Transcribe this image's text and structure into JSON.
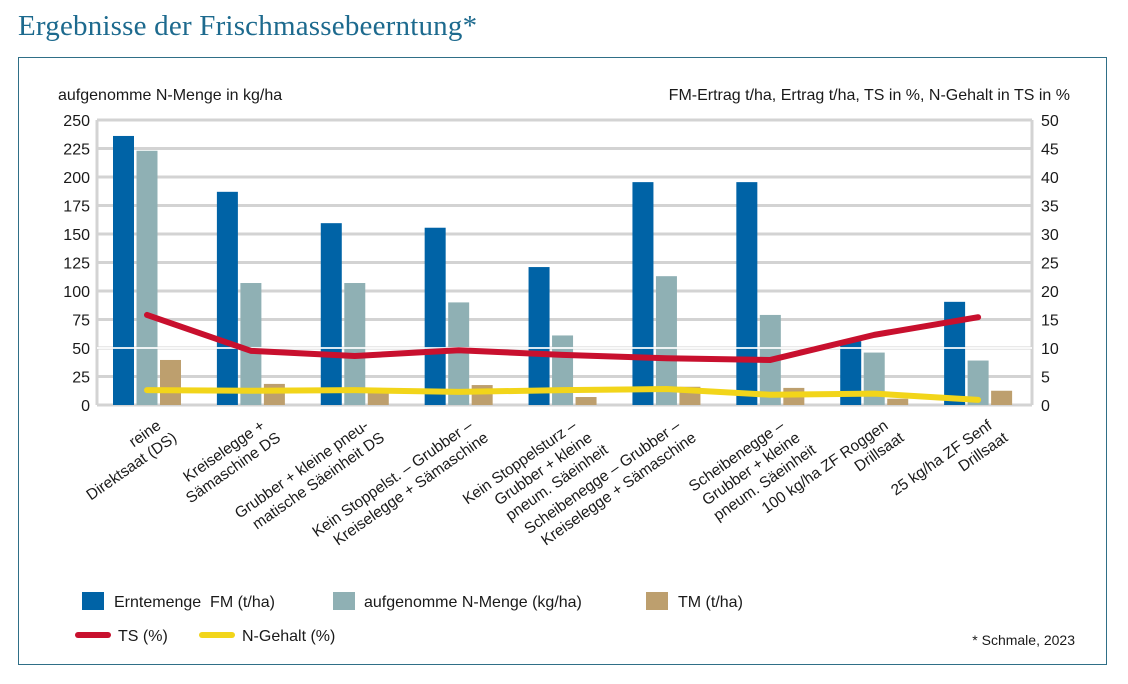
{
  "page": {
    "title": "Ergebnisse der Frischmassebeerntung*",
    "source_note": "* Schmale, 2023"
  },
  "colors": {
    "fm": "#0063a6",
    "n_menge": "#8fb0b4",
    "tm": "#bd9f6e",
    "ts": "#c8102e",
    "n_gehalt": "#f2d51a",
    "grid": "#d3d3d3",
    "frame": "#2f6f87",
    "title": "#1d6a8e"
  },
  "chart_data": {
    "type": "bar",
    "combo": "grouped bars with line overlays (dual y-axis)",
    "title": "Ergebnisse der Frischmassebeerntung*",
    "ylabel_left": "aufgenomme N-Menge in kg/ha",
    "ylabel_right": "FM-Ertrag t/ha, Ertrag t/ha, TS in %, N-Gehalt in TS in %",
    "ylim_left": [
      0,
      250
    ],
    "ylim_right": [
      0,
      50
    ],
    "yticks_left": [
      "0",
      "25",
      "50",
      "75",
      "100",
      "125",
      "150",
      "175",
      "200",
      "225",
      "250"
    ],
    "yticks_right": [
      "0",
      "5",
      "10",
      "15",
      "20",
      "25",
      "30",
      "35",
      "40",
      "45",
      "50"
    ],
    "grid": true,
    "legend_position": "bottom",
    "categories": [
      [
        "reine",
        "Direktsaat (DS)"
      ],
      [
        "Kreiselegge +",
        "Sämaschine DS"
      ],
      [
        "Grubber + kleine pneu-",
        "matische Säeinheit DS"
      ],
      [
        "Kein Stoppelst. – Grubber –",
        "Kreiselegge + Sämaschine"
      ],
      [
        "Kein Stoppelsturz –",
        "Grubber + kleine",
        "pneum. Säeinheit"
      ],
      [
        "Scheibenegge – Grubber –",
        "Kreiselegge + Sämaschine"
      ],
      [
        "Scheibenegge –",
        "Grubber + kleine",
        "pneum. Säeinheit"
      ],
      [
        "100 kg/ha ZF Roggen",
        "Drillsaat"
      ],
      [
        "25 kg/ha ZF Senf",
        "Drillsaat"
      ]
    ],
    "series": [
      {
        "key": "fm",
        "name": "Erntemenge  FM (t/ha)",
        "kind": "bar",
        "axis": "right",
        "values": [
          47.2,
          37.4,
          31.9,
          31.1,
          24.2,
          39.1,
          39.1,
          11.2,
          18.1
        ]
      },
      {
        "key": "n_menge",
        "name": "aufgenomme N-Menge (kg/ha)",
        "kind": "bar",
        "axis": "left",
        "values": [
          223,
          107,
          107,
          90,
          61,
          113,
          79,
          46,
          39
        ]
      },
      {
        "key": "tm",
        "name": "TM (t/ha)",
        "kind": "bar",
        "axis": "right",
        "values": [
          7.9,
          3.7,
          2.3,
          3.5,
          1.4,
          3.2,
          3.0,
          1.1,
          2.5
        ]
      },
      {
        "key": "ts",
        "name": "TS (%)",
        "kind": "line",
        "axis": "right",
        "values": [
          15.8,
          9.5,
          8.6,
          9.6,
          8.8,
          8.2,
          7.9,
          12.3,
          15.4
        ]
      },
      {
        "key": "n_gehalt",
        "name": "N-Gehalt (%)",
        "kind": "line",
        "axis": "right",
        "values": [
          2.6,
          2.5,
          2.6,
          2.3,
          2.6,
          2.8,
          1.8,
          2.0,
          0.9
        ]
      }
    ]
  }
}
